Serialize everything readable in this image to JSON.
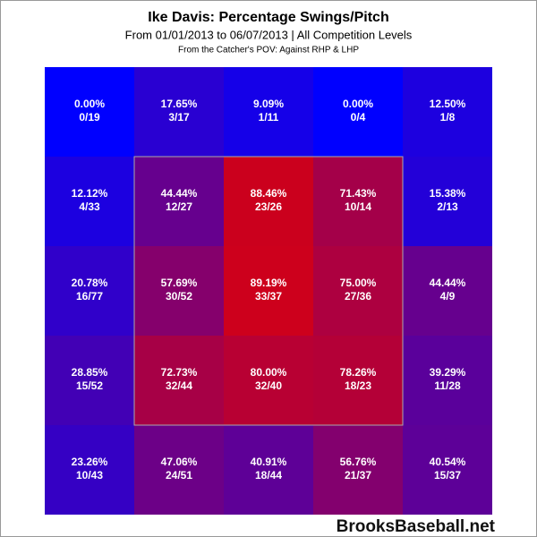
{
  "chart_data": {
    "type": "heatmap",
    "title": "Ike Davis: Percentage Swings/Pitch",
    "subtitle": "From 01/01/2013 to 06/07/2013 | All Competition Levels",
    "note": "From the Catcher's POV:  Against RHP & LHP",
    "watermark": "BrooksBaseball.net",
    "colors": [
      "#0000ff",
      "#e60000"
    ],
    "vmin_vmax": [
      0,
      100
    ],
    "values": [
      [
        0.0,
        17.65,
        9.09,
        0.0,
        12.5
      ],
      [
        12.12,
        44.44,
        88.46,
        71.43,
        15.38
      ],
      [
        20.78,
        57.69,
        89.19,
        75.0,
        44.44
      ],
      [
        28.85,
        72.73,
        80.0,
        78.26,
        39.29
      ],
      [
        23.26,
        47.06,
        40.91,
        56.76,
        40.54
      ]
    ],
    "value_labels": [
      [
        "0.00%",
        "17.65%",
        "9.09%",
        "0.00%",
        "12.50%"
      ],
      [
        "12.12%",
        "44.44%",
        "88.46%",
        "71.43%",
        "15.38%"
      ],
      [
        "20.78%",
        "57.69%",
        "89.19%",
        "75.00%",
        "44.44%"
      ],
      [
        "28.85%",
        "72.73%",
        "80.00%",
        "78.26%",
        "39.29%"
      ],
      [
        "23.26%",
        "47.06%",
        "40.91%",
        "56.76%",
        "40.54%"
      ]
    ],
    "counts": [
      [
        "0/19",
        "3/17",
        "1/11",
        "0/4",
        "1/8"
      ],
      [
        "4/33",
        "12/27",
        "23/26",
        "10/14",
        "2/13"
      ],
      [
        "16/77",
        "30/52",
        "33/37",
        "27/36",
        "4/9"
      ],
      [
        "15/52",
        "32/44",
        "32/40",
        "18/23",
        "11/28"
      ],
      [
        "10/43",
        "24/51",
        "18/44",
        "21/37",
        "15/37"
      ]
    ]
  }
}
